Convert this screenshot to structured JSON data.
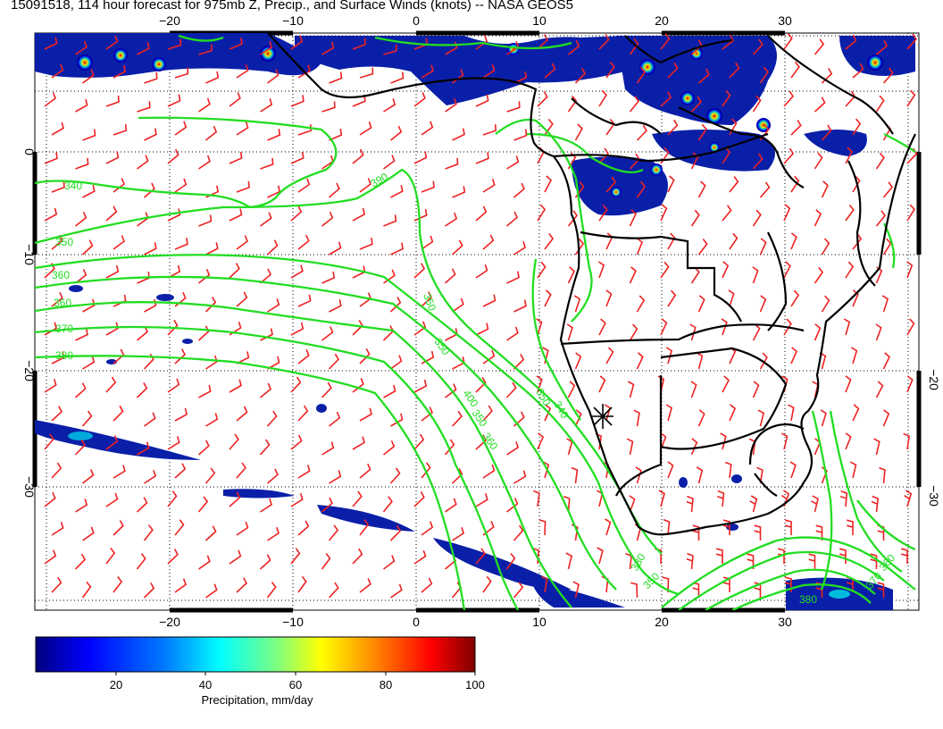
{
  "title": "15091518, 114 hour forecast for 975mb Z, Precip., and Surface Winds (knots) -- NASA GEOS5",
  "map": {
    "lon_labels": [
      "−20",
      "−10",
      "0",
      "10",
      "20",
      "30"
    ],
    "lat_labels": [
      "0",
      "−10",
      "−20",
      "−30"
    ],
    "lat_labels_right": [
      "−20",
      "−30"
    ],
    "contour_labels": [
      "340",
      "350",
      "360",
      "350",
      "350",
      "360",
      "370",
      "380",
      "390",
      "400",
      "350",
      "360",
      "350",
      "340",
      "330",
      "350",
      "360",
      "370",
      "380"
    ],
    "colors": {
      "contour": "#22dd22",
      "wind_barb": "#ee2222",
      "coastline": "#000000",
      "grid": "#000000"
    },
    "marker_icon": "asterisk-marker"
  },
  "colorbar": {
    "ticks": [
      "20",
      "40",
      "60",
      "80",
      "100"
    ],
    "title": "Precipitation, mm/day",
    "colors": [
      "#00007f",
      "#0000ff",
      "#007fff",
      "#00ffff",
      "#7fff7f",
      "#ffff00",
      "#ff7f00",
      "#ff0000",
      "#7f0000"
    ]
  }
}
